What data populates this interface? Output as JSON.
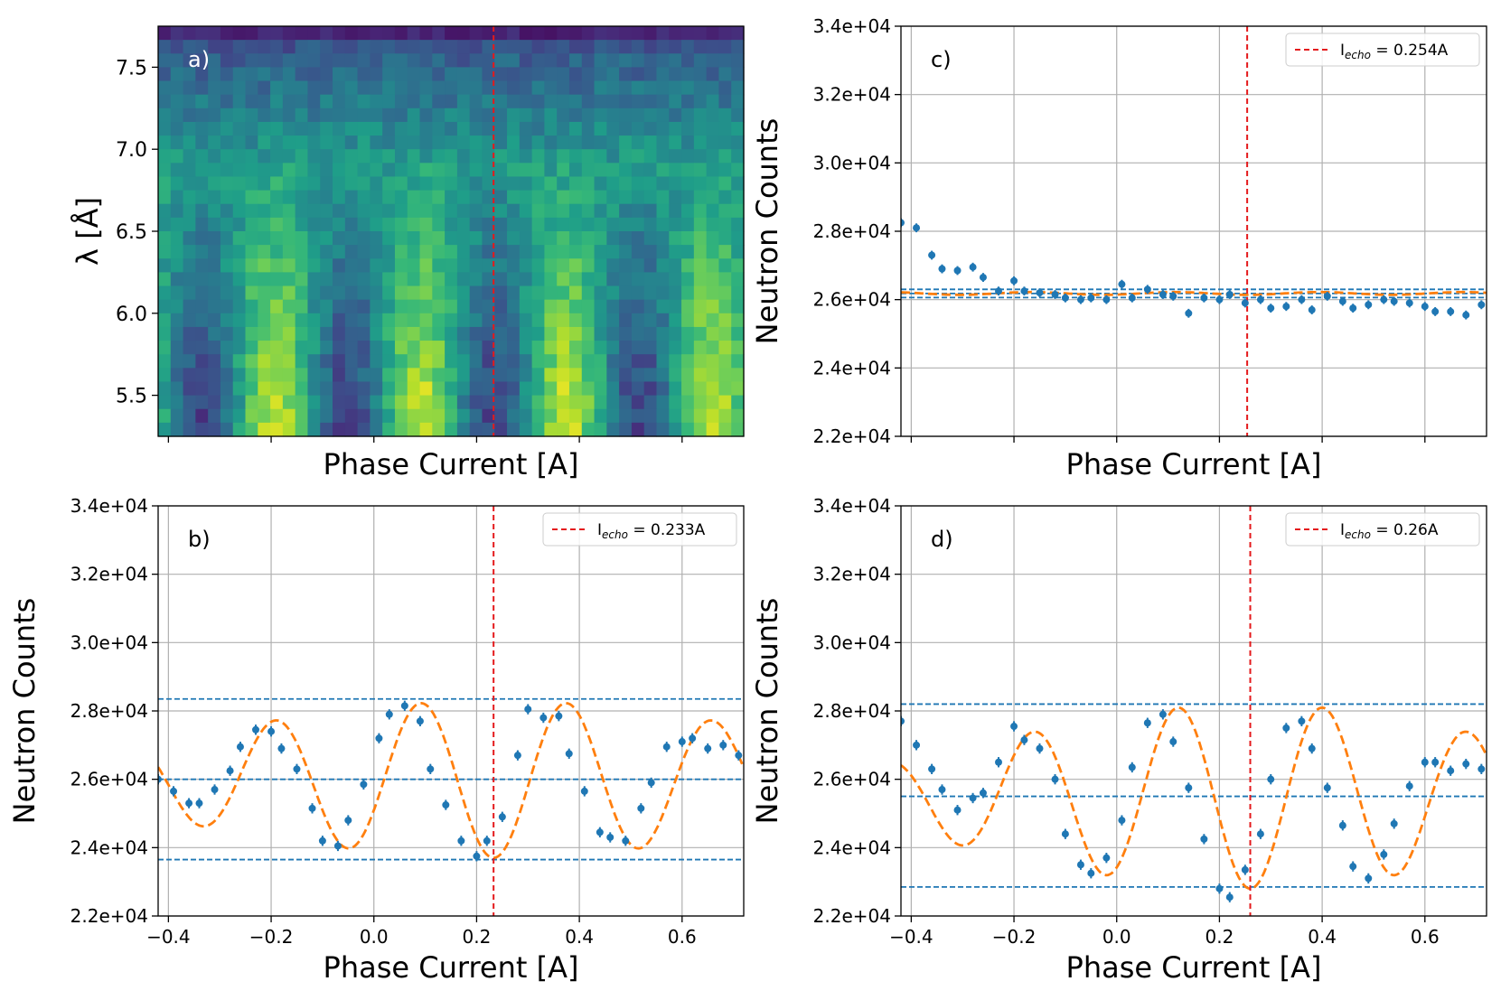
{
  "chart_data": [
    {
      "id": "a",
      "type": "heatmap",
      "panel_label": "a)",
      "xlabel": "Phase Current [A]",
      "ylabel": "λ [Å]",
      "xlim": [
        -0.42,
        0.72
      ],
      "ylim": [
        5.25,
        7.75
      ],
      "yticks": [
        "7.5",
        "7.0",
        "6.5",
        "6.0",
        "5.5"
      ],
      "ytick_values": [
        7.5,
        7.0,
        6.5,
        6.0,
        5.5
      ],
      "xtick_values": [
        -0.4,
        -0.2,
        0.0,
        0.2,
        0.4,
        0.6
      ],
      "colormap": "viridis",
      "grid_cols": 47,
      "grid_rows": 30,
      "echo_line": 0.233
    },
    {
      "id": "c",
      "type": "scatter",
      "panel_label": "c)",
      "xlabel": "Phase Current [A]",
      "ylabel": "Neutron Counts",
      "xlim": [
        -0.42,
        0.72
      ],
      "ylim": [
        22000,
        34000
      ],
      "yticks": [
        "2.2e+04",
        "2.4e+04",
        "2.6e+04",
        "2.8e+04",
        "3.0e+04",
        "3.2e+04",
        "3.4e+04"
      ],
      "ytick_values": [
        22000,
        24000,
        26000,
        28000,
        30000,
        32000,
        34000
      ],
      "xtick_values": [
        -0.4,
        -0.2,
        0.0,
        0.2,
        0.4,
        0.6
      ],
      "show_xtick_labels": false,
      "legend": {
        "prefix": "I",
        "subscript": "echo",
        "suffix": " = 0.254A",
        "position": "top-right"
      },
      "echo_line": 0.254,
      "hlines": [
        26300,
        26180,
        26060
      ],
      "fit": {
        "mean": 26180,
        "amp": 40,
        "period": 0.28,
        "phase": 0.254,
        "decay": 0
      },
      "x": [
        -0.42,
        -0.39,
        -0.36,
        -0.34,
        -0.31,
        -0.28,
        -0.26,
        -0.23,
        -0.2,
        -0.18,
        -0.15,
        -0.12,
        -0.1,
        -0.07,
        -0.05,
        -0.02,
        0.01,
        0.03,
        0.06,
        0.09,
        0.11,
        0.14,
        0.17,
        0.2,
        0.22,
        0.25,
        0.28,
        0.3,
        0.33,
        0.36,
        0.38,
        0.41,
        0.44,
        0.46,
        0.49,
        0.52,
        0.54,
        0.57,
        0.6,
        0.62,
        0.65,
        0.68,
        0.71
      ],
      "y": [
        28250,
        28100,
        27300,
        26900,
        26850,
        26950,
        26650,
        26250,
        26550,
        26250,
        26200,
        26150,
        26050,
        26000,
        26050,
        26000,
        26450,
        26050,
        26300,
        26150,
        26100,
        25600,
        26050,
        26000,
        26150,
        25900,
        26000,
        25750,
        25800,
        26000,
        25700,
        26100,
        25950,
        25750,
        25850,
        26000,
        25950,
        25900,
        25800,
        25650,
        25650,
        25550,
        25850
      ],
      "err": [
        130,
        130,
        130,
        130,
        130,
        130,
        130,
        130,
        130,
        130,
        130,
        130,
        130,
        130,
        130,
        130,
        130,
        130,
        130,
        130,
        130,
        130,
        130,
        130,
        130,
        130,
        130,
        130,
        130,
        130,
        130,
        130,
        130,
        130,
        130,
        130,
        130,
        130,
        130,
        130,
        130,
        130,
        130
      ]
    },
    {
      "id": "b",
      "type": "scatter",
      "panel_label": "b)",
      "xlabel": "Phase Current [A]",
      "ylabel": "Neutron Counts",
      "xlim": [
        -0.42,
        0.72
      ],
      "ylim": [
        22000,
        34000
      ],
      "yticks": [
        "2.2e+04",
        "2.4e+04",
        "2.6e+04",
        "2.8e+04",
        "3.0e+04",
        "3.2e+04",
        "3.4e+04"
      ],
      "ytick_values": [
        22000,
        24000,
        26000,
        28000,
        30000,
        32000,
        34000
      ],
      "xticks": [
        "−0.4",
        "−0.2",
        "0.0",
        "0.2",
        "0.4",
        "0.6"
      ],
      "xtick_values": [
        -0.4,
        -0.2,
        0.0,
        0.2,
        0.4,
        0.6
      ],
      "show_xtick_labels": true,
      "legend": {
        "prefix": "I",
        "subscript": "echo",
        "suffix": " = 0.233A",
        "position": "top-right"
      },
      "echo_line": 0.233,
      "hlines": [
        28350,
        26000,
        23650
      ],
      "fit": {
        "mean": 26000,
        "amp": 2300,
        "period": 0.284,
        "phase": 0.233,
        "decay": 1.6
      },
      "x": [
        -0.42,
        -0.39,
        -0.36,
        -0.34,
        -0.31,
        -0.28,
        -0.26,
        -0.23,
        -0.2,
        -0.18,
        -0.15,
        -0.12,
        -0.1,
        -0.07,
        -0.05,
        -0.02,
        0.01,
        0.03,
        0.06,
        0.09,
        0.11,
        0.14,
        0.17,
        0.2,
        0.22,
        0.25,
        0.28,
        0.3,
        0.33,
        0.36,
        0.38,
        0.41,
        0.44,
        0.46,
        0.49,
        0.52,
        0.54,
        0.57,
        0.6,
        0.62,
        0.65,
        0.68,
        0.71
      ],
      "y": [
        26000,
        25650,
        25300,
        25300,
        25700,
        26250,
        26950,
        27450,
        27400,
        26900,
        26300,
        25150,
        24200,
        24050,
        24800,
        25850,
        27200,
        27900,
        28150,
        27700,
        26300,
        25250,
        24200,
        23750,
        24200,
        24900,
        26700,
        28050,
        27800,
        27850,
        26750,
        25650,
        24450,
        24300,
        24200,
        25150,
        25900,
        26950,
        27100,
        27200,
        26900,
        27000,
        26700
      ],
      "err": [
        150,
        150,
        150,
        150,
        150,
        150,
        150,
        150,
        150,
        150,
        150,
        150,
        150,
        150,
        150,
        150,
        150,
        150,
        150,
        150,
        150,
        150,
        150,
        150,
        150,
        150,
        150,
        150,
        150,
        150,
        150,
        150,
        150,
        150,
        150,
        150,
        150,
        150,
        150,
        150,
        150,
        150,
        150
      ]
    },
    {
      "id": "d",
      "type": "scatter",
      "panel_label": "d)",
      "xlabel": "Phase Current [A]",
      "ylabel": "Neutron Counts",
      "xlim": [
        -0.42,
        0.72
      ],
      "ylim": [
        22000,
        34000
      ],
      "yticks": [
        "2.2e+04",
        "2.4e+04",
        "2.6e+04",
        "2.8e+04",
        "3.0e+04",
        "3.2e+04",
        "3.4e+04"
      ],
      "ytick_values": [
        22000,
        24000,
        26000,
        28000,
        30000,
        32000,
        34000
      ],
      "xticks": [
        "−0.4",
        "−0.2",
        "0.0",
        "0.2",
        "0.4",
        "0.6"
      ],
      "xtick_values": [
        -0.4,
        -0.2,
        0.0,
        0.2,
        0.4,
        0.6
      ],
      "show_xtick_labels": true,
      "legend": {
        "prefix": "I",
        "subscript": "echo",
        "suffix": " = 0.26A",
        "position": "top-right"
      },
      "echo_line": 0.26,
      "hlines": [
        28200,
        25500,
        22850
      ],
      "fit": {
        "mean": 25500,
        "amp": 2700,
        "period": 0.282,
        "phase": 0.26,
        "decay": 2.0
      },
      "x": [
        -0.42,
        -0.39,
        -0.36,
        -0.34,
        -0.31,
        -0.28,
        -0.26,
        -0.23,
        -0.2,
        -0.18,
        -0.15,
        -0.12,
        -0.1,
        -0.07,
        -0.05,
        -0.02,
        0.01,
        0.03,
        0.06,
        0.09,
        0.11,
        0.14,
        0.17,
        0.2,
        0.22,
        0.25,
        0.28,
        0.3,
        0.33,
        0.36,
        0.38,
        0.41,
        0.44,
        0.46,
        0.49,
        0.52,
        0.54,
        0.57,
        0.6,
        0.62,
        0.65,
        0.68,
        0.71
      ],
      "y": [
        27700,
        27000,
        26300,
        25700,
        25100,
        25450,
        25600,
        26500,
        27550,
        27150,
        26900,
        26000,
        24400,
        23500,
        23250,
        23700,
        24800,
        26350,
        27650,
        27900,
        27100,
        25750,
        24250,
        22800,
        22550,
        23350,
        24400,
        26000,
        27500,
        27700,
        26900,
        25750,
        24650,
        23450,
        23100,
        23800,
        24700,
        25800,
        26500,
        26500,
        26250,
        26450,
        26300
      ],
      "err": [
        150,
        150,
        150,
        150,
        150,
        150,
        150,
        150,
        150,
        150,
        150,
        150,
        150,
        150,
        150,
        150,
        150,
        150,
        150,
        150,
        150,
        150,
        150,
        150,
        150,
        150,
        150,
        150,
        150,
        150,
        150,
        150,
        150,
        150,
        150,
        150,
        150,
        150,
        150,
        150,
        150,
        150,
        150
      ]
    }
  ]
}
